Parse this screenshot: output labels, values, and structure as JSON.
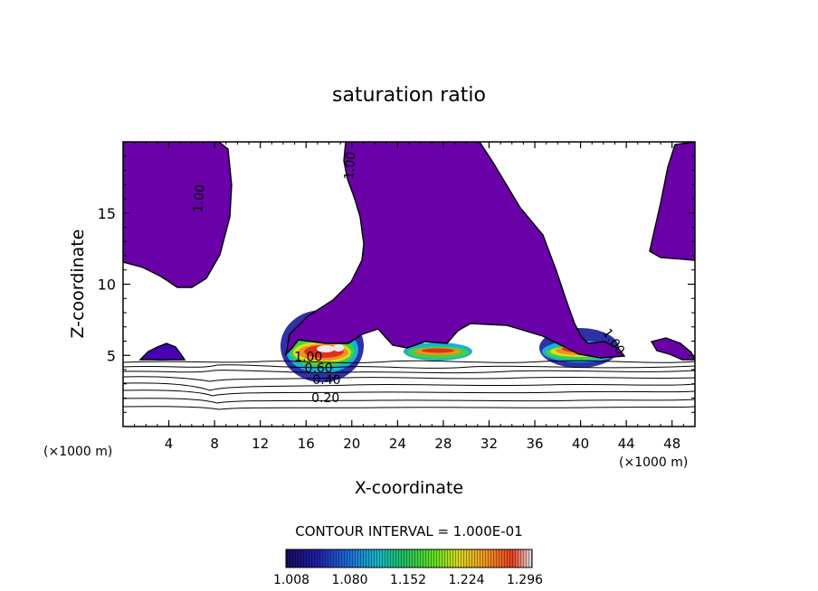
{
  "chart_data": {
    "type": "contour",
    "title": "saturation ratio",
    "xlabel": "X-coordinate",
    "ylabel": "Z-coordinate",
    "x_unit_left": "(×1000 m)",
    "x_unit_right": "(×1000 m)",
    "xlim": [
      0,
      50
    ],
    "ylim": [
      0,
      20
    ],
    "x_ticks": [
      4,
      8,
      12,
      16,
      20,
      24,
      28,
      32,
      36,
      40,
      44,
      48
    ],
    "y_ticks": [
      5,
      10,
      15
    ],
    "contour_interval_text": "CONTOUR INTERVAL = 1.000E-01",
    "colorbar": {
      "ticks": [
        "1.008",
        "1.080",
        "1.152",
        "1.224",
        "1.296"
      ],
      "colors": [
        "#1a0a5e",
        "#2020a8",
        "#1a6bd8",
        "#18b4c8",
        "#20c060",
        "#60e020",
        "#d8d820",
        "#f0a020",
        "#e84020",
        "#e0e0e0"
      ]
    },
    "contour_labels": [
      {
        "text": "1.00",
        "x": 7.0,
        "z": 16.0,
        "rotate": -85
      },
      {
        "text": "1.00",
        "x": 20.2,
        "z": 18.3,
        "rotate": -85
      },
      {
        "text": "1.00",
        "x": 42.6,
        "z": 5.8,
        "rotate": 55
      },
      {
        "text": "1.00",
        "x": 16.2,
        "z": 4.6,
        "rotate": 0
      },
      {
        "text": "0.60",
        "x": 17.1,
        "z": 3.8,
        "rotate": 0
      },
      {
        "text": "0.40",
        "x": 17.8,
        "z": 3.0,
        "rotate": 0
      },
      {
        "text": "0.20",
        "x": 17.7,
        "z": 1.7,
        "rotate": 0
      }
    ],
    "colors": {
      "region_low": "#6a00a8",
      "region_mid": "#4800b4",
      "region_core": "#3a1cc0",
      "cyan": "#18c0d8",
      "green": "#40d040",
      "yellow": "#d8e020",
      "orange": "#f09020",
      "red": "#e03020",
      "peak": "#f0e8f0"
    }
  }
}
